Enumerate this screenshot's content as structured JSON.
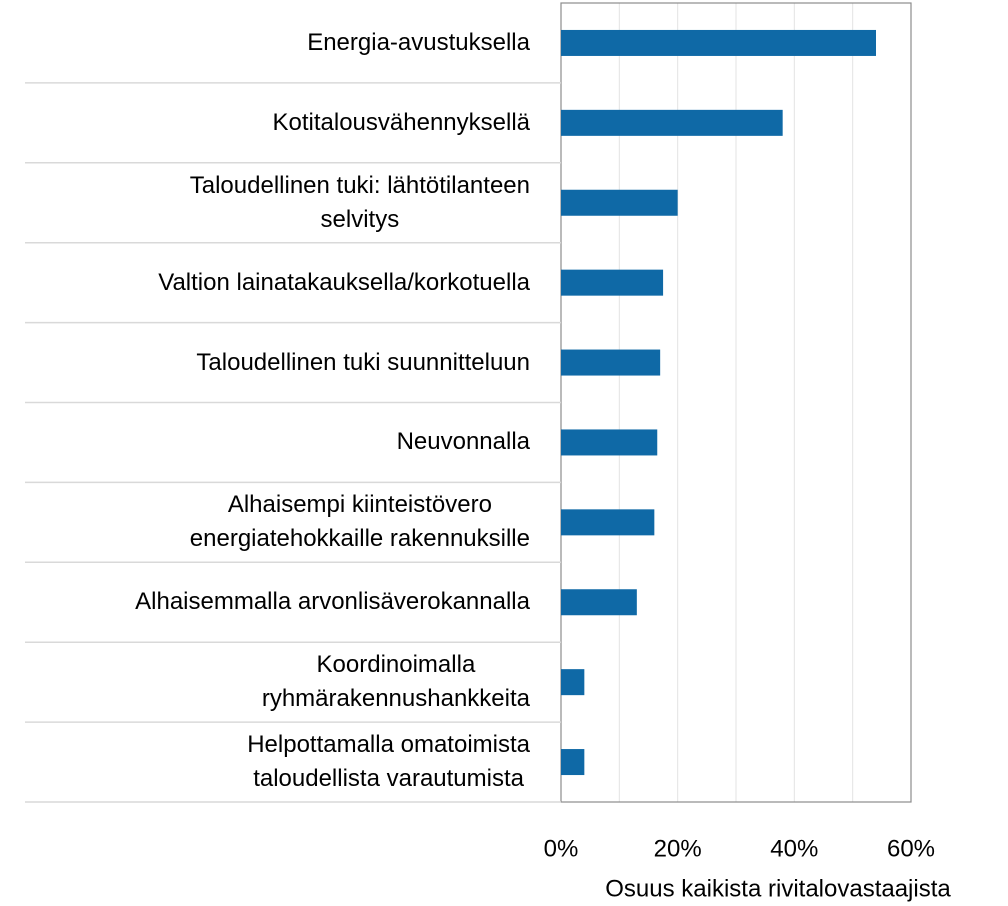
{
  "chart_data": {
    "type": "barh",
    "categories": [
      "Energia-avustuksella",
      "Kotitalousvähennyksellä",
      "Taloudellinen tuki: lähtötilanteen\nselvitys",
      "Valtion lainatakauksella/korkotuella",
      "Taloudellinen tuki suunnitteluun",
      "Neuvonnalla",
      "Alhaisempi kiinteistövero\nenergiatehokkaille rakennuksille",
      "Alhaisemmalla arvonlisäverokannalla",
      "Koordinoimalla\nryhmärakennushankkeita",
      "Helpottamalla omatoimista\ntaloudellista varautumista"
    ],
    "values": [
      54,
      38,
      20,
      17.5,
      17,
      16.5,
      16,
      13,
      4,
      4
    ],
    "color": "#0f69a6",
    "xlabel": "Osuus kaikista rivitalovastaajista",
    "xlim": [
      0,
      60
    ],
    "xticks": [
      {
        "value": 0,
        "label": "0%"
      },
      {
        "value": 20,
        "label": "20%"
      },
      {
        "value": 40,
        "label": "40%"
      },
      {
        "value": 60,
        "label": "60%"
      }
    ],
    "x_minor_ticks": [
      10,
      30,
      50
    ],
    "grid": true
  }
}
